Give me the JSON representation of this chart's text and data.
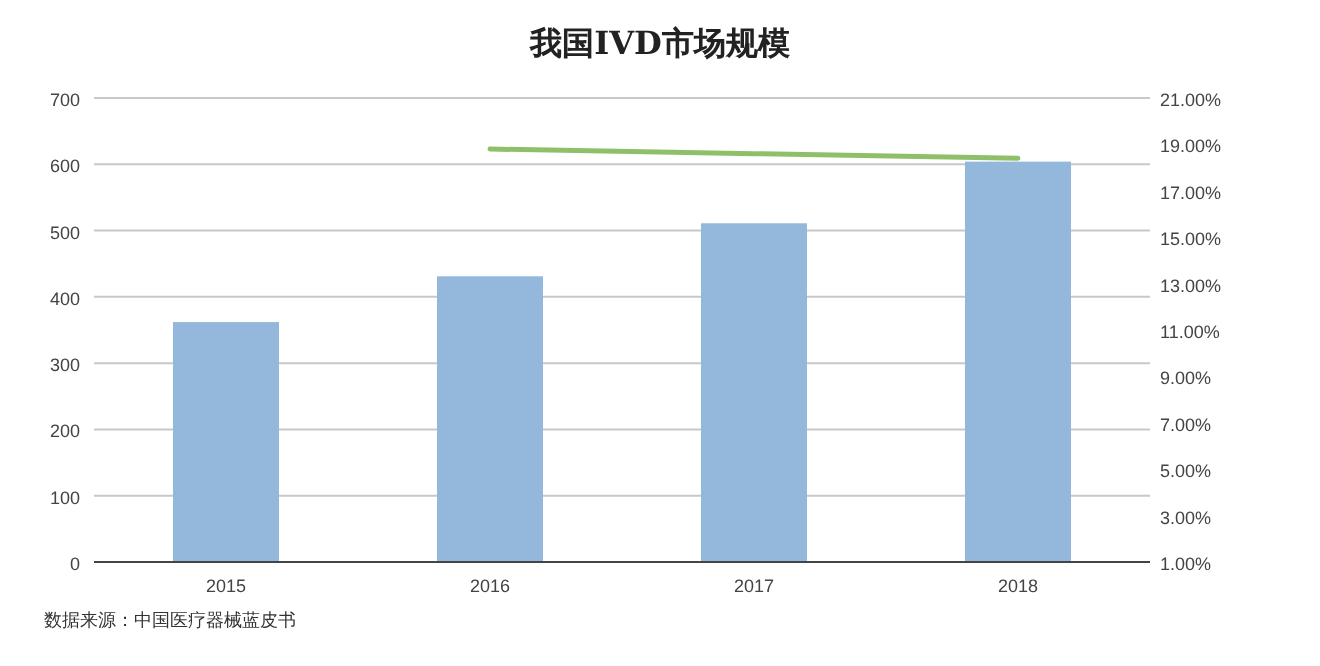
{
  "chart_data": {
    "type": "bar",
    "title": "我国IVD市场规模",
    "categories": [
      "2015",
      "2016",
      "2017",
      "2018"
    ],
    "series": [
      {
        "color": "#94b8dc",
        "values": [
          362,
          431,
          511,
          604
        ]
      },
      {
        "type": "line",
        "axis": "y2",
        "color": "#8fc069",
        "values": [
          null,
          18.8,
          18.6,
          18.4
        ]
      }
    ],
    "ylim": [
      0,
      700
    ],
    "yticks": [
      0,
      100,
      200,
      300,
      400,
      500,
      600,
      700
    ],
    "y2lim": [
      1,
      21
    ],
    "y2ticks": [
      {
        "value": 1,
        "label": "1.00%"
      },
      {
        "value": 3,
        "label": "3.00%"
      },
      {
        "value": 5,
        "label": "5.00%"
      },
      {
        "value": 7,
        "label": "7.00%"
      },
      {
        "value": 9,
        "label": "9.00%"
      },
      {
        "value": 11,
        "label": "11.00%"
      },
      {
        "value": 13,
        "label": "13.00%"
      },
      {
        "value": 15,
        "label": "15.00%"
      },
      {
        "value": 17,
        "label": "17.00%"
      },
      {
        "value": 19,
        "label": "19.00%"
      },
      {
        "value": 21,
        "label": "21.00%"
      }
    ],
    "grid": "y",
    "marker": "none",
    "annotations": [
      "数据来源：中国医疗器械蓝皮书"
    ]
  }
}
